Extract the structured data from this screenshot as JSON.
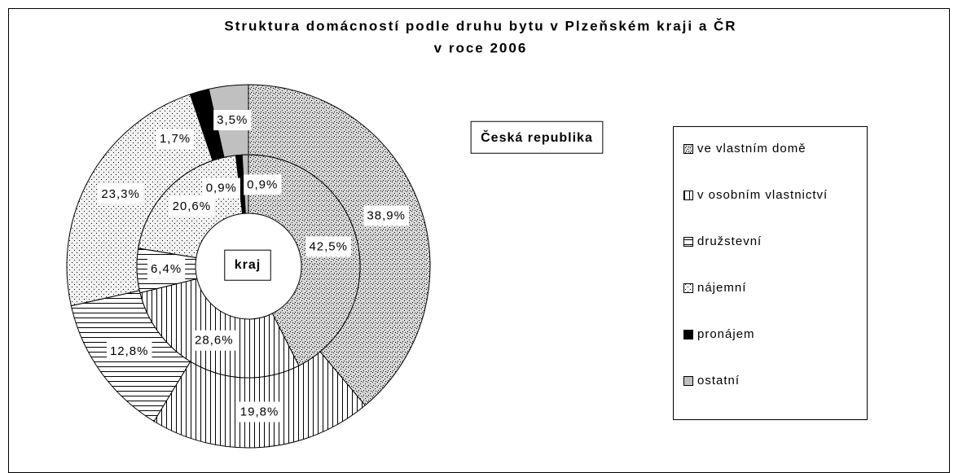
{
  "chart_data": {
    "type": "doughnut",
    "title": "Struktura domácností podle druhu bytu v Plzeňském kraji a ČR",
    "subtitle": "v roce 2006",
    "categories": [
      "ve vlastním domě",
      "v osobním vlastnictví",
      "družstevní",
      "nájemní",
      "pronájem",
      "ostatní"
    ],
    "colors": [
      "#d8d8d8",
      "#ffffff",
      "#ffffff",
      "#f2f2f2",
      "#000000",
      "#c0c0c0"
    ],
    "series": [
      {
        "name": "Česká republika",
        "values": [
          38.9,
          19.8,
          12.8,
          23.3,
          1.7,
          3.5
        ],
        "value_labels": [
          "38,9%",
          "19,8%",
          "12,8%",
          "23,3%",
          "1,7%",
          "3,5%"
        ]
      },
      {
        "name": "kraj",
        "values": [
          42.5,
          28.6,
          6.4,
          20.6,
          0.9,
          0.9
        ],
        "value_labels": [
          "42,5%",
          "28,6%",
          "6,4%",
          "20,6%",
          "0,9%",
          "0,9%"
        ]
      }
    ],
    "legend": "right"
  }
}
